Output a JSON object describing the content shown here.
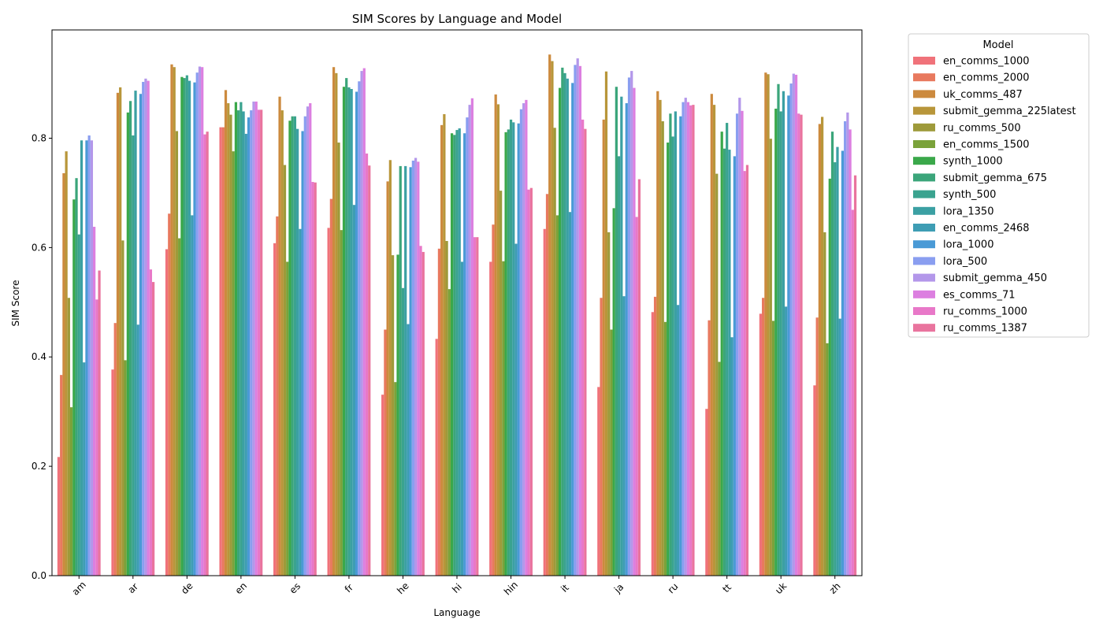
{
  "chart_data": {
    "type": "bar",
    "title": "SIM Scores by Language and Model",
    "xlabel": "Language",
    "ylabel": "SIM Score",
    "ylim": [
      0,
      1.0
    ],
    "yticks": [
      "0.0",
      "0.2",
      "0.4",
      "0.6",
      "0.8"
    ],
    "grid": false,
    "legend": {
      "title": "Model",
      "placement": "outside-right"
    },
    "categories": [
      "am",
      "ar",
      "de",
      "en",
      "es",
      "fr",
      "he",
      "hi",
      "hin",
      "it",
      "ja",
      "ru",
      "tt",
      "uk",
      "zh"
    ],
    "series": [
      {
        "name": "en_comms_1000",
        "color": "#f0727a",
        "values": [
          0.217,
          0.377,
          0.597,
          0.82,
          0.608,
          0.636,
          0.331,
          0.433,
          0.574,
          0.634,
          0.345,
          0.482,
          0.305,
          0.479,
          0.348
        ]
      },
      {
        "name": "en_comms_2000",
        "color": "#e8795e",
        "values": [
          0.367,
          0.462,
          0.662,
          0.82,
          0.657,
          0.689,
          0.45,
          0.598,
          0.642,
          0.698,
          0.508,
          0.51,
          0.467,
          0.508,
          0.472
        ]
      },
      {
        "name": "uk_comms_487",
        "color": "#cc8a3e",
        "values": [
          0.736,
          0.883,
          0.935,
          0.888,
          0.876,
          0.93,
          0.721,
          0.824,
          0.88,
          0.953,
          0.834,
          0.886,
          0.881,
          0.92,
          0.826
        ]
      },
      {
        "name": "submit_gemma_225latest",
        "color": "#b8963a",
        "values": [
          0.776,
          0.893,
          0.93,
          0.864,
          0.851,
          0.919,
          0.76,
          0.844,
          0.862,
          0.941,
          0.922,
          0.87,
          0.861,
          0.917,
          0.839
        ]
      },
      {
        "name": "ru_comms_500",
        "color": "#9e9a3a",
        "values": [
          0.508,
          0.613,
          0.813,
          0.843,
          0.751,
          0.792,
          0.586,
          0.612,
          0.704,
          0.819,
          0.628,
          0.831,
          0.735,
          0.799,
          0.628
        ]
      },
      {
        "name": "en_comms_1500",
        "color": "#7aa23a",
        "values": [
          0.308,
          0.394,
          0.617,
          0.776,
          0.574,
          0.632,
          0.354,
          0.524,
          0.575,
          0.659,
          0.45,
          0.464,
          0.391,
          0.466,
          0.425
        ]
      },
      {
        "name": "synth_1000",
        "color": "#3aa84a",
        "values": [
          0.688,
          0.847,
          0.912,
          0.866,
          0.832,
          0.894,
          0.587,
          0.809,
          0.811,
          0.892,
          0.672,
          0.792,
          0.812,
          0.854,
          0.726
        ]
      },
      {
        "name": "submit_gemma_675",
        "color": "#3ba57a",
        "values": [
          0.727,
          0.868,
          0.91,
          0.851,
          0.84,
          0.91,
          0.749,
          0.806,
          0.816,
          0.929,
          0.894,
          0.845,
          0.781,
          0.899,
          0.812
        ]
      },
      {
        "name": "synth_500",
        "color": "#3aa38f",
        "values": [
          0.624,
          0.805,
          0.915,
          0.866,
          0.84,
          0.893,
          0.526,
          0.815,
          0.834,
          0.919,
          0.767,
          0.803,
          0.828,
          0.849,
          0.756
        ]
      },
      {
        "name": "lora_1350",
        "color": "#3ba0a3",
        "values": [
          0.796,
          0.887,
          0.905,
          0.849,
          0.817,
          0.89,
          0.749,
          0.818,
          0.829,
          0.909,
          0.876,
          0.849,
          0.779,
          0.886,
          0.784
        ]
      },
      {
        "name": "en_comms_2468",
        "color": "#3e9db4",
        "values": [
          0.39,
          0.459,
          0.659,
          0.808,
          0.634,
          0.678,
          0.46,
          0.574,
          0.607,
          0.665,
          0.511,
          0.495,
          0.436,
          0.492,
          0.47
        ]
      },
      {
        "name": "lora_1000",
        "color": "#4a9ad6",
        "values": [
          0.796,
          0.881,
          0.902,
          0.838,
          0.813,
          0.885,
          0.747,
          0.809,
          0.827,
          0.901,
          0.864,
          0.84,
          0.767,
          0.878,
          0.777
        ]
      },
      {
        "name": "lora_500",
        "color": "#8a9ef0",
        "values": [
          0.805,
          0.903,
          0.92,
          0.851,
          0.84,
          0.904,
          0.759,
          0.838,
          0.853,
          0.934,
          0.911,
          0.866,
          0.845,
          0.9,
          0.831
        ]
      },
      {
        "name": "submit_gemma_450",
        "color": "#b397ea",
        "values": [
          0.796,
          0.909,
          0.931,
          0.867,
          0.858,
          0.923,
          0.764,
          0.861,
          0.864,
          0.946,
          0.923,
          0.874,
          0.874,
          0.918,
          0.847
        ]
      },
      {
        "name": "es_comms_71",
        "color": "#dc7fe0",
        "values": [
          0.638,
          0.905,
          0.93,
          0.867,
          0.864,
          0.928,
          0.757,
          0.873,
          0.87,
          0.932,
          0.892,
          0.866,
          0.85,
          0.916,
          0.816
        ]
      },
      {
        "name": "ru_comms_1000",
        "color": "#e878c8",
        "values": [
          0.505,
          0.56,
          0.807,
          0.852,
          0.72,
          0.772,
          0.603,
          0.619,
          0.706,
          0.834,
          0.656,
          0.86,
          0.74,
          0.845,
          0.669
        ]
      },
      {
        "name": "ru_comms_1387",
        "color": "#e9749e",
        "values": [
          0.558,
          0.537,
          0.812,
          0.852,
          0.719,
          0.75,
          0.592,
          0.619,
          0.709,
          0.817,
          0.725,
          0.861,
          0.751,
          0.843,
          0.732
        ]
      }
    ]
  }
}
